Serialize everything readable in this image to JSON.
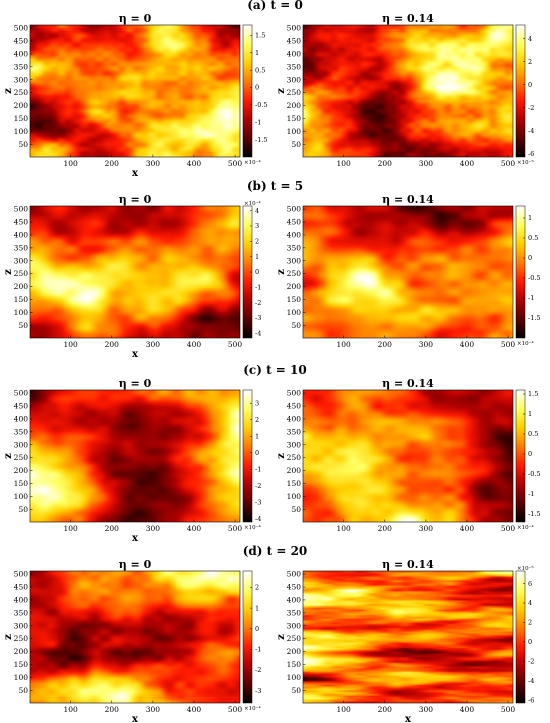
{
  "chart_data": [
    {
      "section_label": "(a) t = 0",
      "panels": [
        {
          "title": "η = 0",
          "type": "heatmap",
          "xlabel": "x",
          "ylabel": "z",
          "xlim": [
            1,
            512
          ],
          "ylim": [
            1,
            512
          ],
          "xticks": [
            "100",
            "200",
            "300",
            "400",
            "500"
          ],
          "yticks": [
            "50",
            "100",
            "150",
            "200",
            "250",
            "300",
            "350",
            "400",
            "450",
            "500"
          ],
          "colorbar": {
            "range": [
              -2,
              1.8
            ],
            "ticks": [
              "1.5",
              "1",
              "0.5",
              "0",
              "-0.5",
              "-1",
              "-1.5"
            ],
            "exponent": "×10⁻⁴"
          },
          "seed": 11,
          "scale": 1.0
        },
        {
          "title": "η = 0.14",
          "type": "heatmap",
          "xlabel": "",
          "ylabel": "z",
          "xlim": [
            1,
            512
          ],
          "ylim": [
            1,
            512
          ],
          "xticks": [
            "100",
            "200",
            "300",
            "400",
            "500"
          ],
          "yticks": [
            "50",
            "100",
            "150",
            "200",
            "250",
            "300",
            "350",
            "400",
            "450",
            "500"
          ],
          "colorbar": {
            "range": [
              -6.3,
              5.2
            ],
            "ticks": [
              "4",
              "2",
              "0",
              "-2",
              "-4",
              "-6"
            ],
            "exponent": "×10⁻⁵"
          },
          "seed": 23,
          "scale": 1.0
        }
      ]
    },
    {
      "section_label": "(b) t = 5",
      "panels": [
        {
          "title": "η = 0",
          "type": "heatmap",
          "xlabel": "x",
          "ylabel": "z",
          "xlim": [
            1,
            512
          ],
          "ylim": [
            1,
            512
          ],
          "xticks": [
            "100",
            "200",
            "300",
            "400",
            "500"
          ],
          "yticks": [
            "50",
            "100",
            "150",
            "200",
            "250",
            "300",
            "350",
            "400",
            "450",
            "500"
          ],
          "colorbar": {
            "range": [
              -4.3,
              4.3
            ],
            "ticks": [
              "4",
              "3",
              "2",
              "1",
              "0",
              "-1",
              "-2",
              "-3",
              "-4"
            ],
            "exponent": "×10⁻⁴"
          },
          "seed": 37,
          "scale": 1.8
        },
        {
          "title": "η = 0.14",
          "type": "heatmap",
          "xlabel": "",
          "ylabel": "z",
          "xlim": [
            1,
            512
          ],
          "ylim": [
            1,
            512
          ],
          "xticks": [
            "100",
            "200",
            "300",
            "400",
            "500"
          ],
          "yticks": [
            "50",
            "100",
            "150",
            "200",
            "250",
            "300",
            "350",
            "400",
            "450",
            "500"
          ],
          "colorbar": {
            "range": [
              -2.0,
              1.3
            ],
            "ticks": [
              "1",
              "0.5",
              "0",
              "-0.5",
              "-1",
              "-1.5"
            ],
            "exponent": "×10⁻⁴"
          },
          "seed": 41,
          "scale": 1.8
        }
      ]
    },
    {
      "section_label": "(c) t = 10",
      "panels": [
        {
          "title": "η = 0",
          "type": "heatmap",
          "xlabel": "x",
          "ylabel": "z",
          "xlim": [
            1,
            512
          ],
          "ylim": [
            1,
            512
          ],
          "xticks": [
            "100",
            "200",
            "300",
            "400",
            "500"
          ],
          "yticks": [
            "50",
            "100",
            "150",
            "200",
            "250",
            "300",
            "350",
            "400",
            "450",
            "500"
          ],
          "colorbar": {
            "range": [
              -4.2,
              3.8
            ],
            "ticks": [
              "3",
              "2",
              "1",
              "0",
              "-1",
              "-2",
              "-3",
              "-4"
            ],
            "exponent": "×10⁻⁴"
          },
          "seed": 53,
          "scale": 1.6
        },
        {
          "title": "η = 0.14",
          "type": "heatmap",
          "xlabel": "",
          "ylabel": "z",
          "xlim": [
            1,
            512
          ],
          "ylim": [
            1,
            512
          ],
          "xticks": [
            "100",
            "200",
            "300",
            "400",
            "500"
          ],
          "yticks": [
            "50",
            "100",
            "150",
            "200",
            "250",
            "300",
            "350",
            "400",
            "450",
            "500"
          ],
          "colorbar": {
            "range": [
              -1.7,
              1.6
            ],
            "ticks": [
              "1.5",
              "1",
              "0.5",
              "0",
              "-0.5",
              "-1",
              "-1.5"
            ],
            "exponent": "×10⁻⁴"
          },
          "seed": 67,
          "scale": 1.6
        }
      ]
    },
    {
      "section_label": "(d) t = 20",
      "panels": [
        {
          "title": "η = 0",
          "type": "heatmap",
          "xlabel": "x",
          "ylabel": "z",
          "xlim": [
            1,
            512
          ],
          "ylim": [
            1,
            512
          ],
          "xticks": [
            "100",
            "200",
            "300",
            "400",
            "500"
          ],
          "yticks": [
            "50",
            "100",
            "150",
            "200",
            "250",
            "300",
            "350",
            "400",
            "450",
            "500"
          ],
          "colorbar": {
            "range": [
              -3.6,
              2.8
            ],
            "ticks": [
              "2",
              "1",
              "0",
              "-1",
              "-2",
              "-3"
            ],
            "exponent": "×10⁻⁴"
          },
          "seed": 79,
          "scale": 1.4
        },
        {
          "title": "η = 0.14",
          "type": "heatmap",
          "xlabel": "x",
          "ylabel": "z",
          "xlim": [
            1,
            512
          ],
          "ylim": [
            1,
            512
          ],
          "xticks": [
            "100",
            "200",
            "300",
            "400",
            "500"
          ],
          "yticks": [
            "50",
            "100",
            "150",
            "200",
            "250",
            "300",
            "350",
            "400",
            "450",
            "500"
          ],
          "colorbar": {
            "range": [
              -6.3,
              7.3
            ],
            "ticks": [
              "6",
              "4",
              "2",
              "0",
              "-2",
              "-4",
              "-6"
            ],
            "exponent": "×10⁻⁵"
          },
          "seed": 97,
          "scale": 0.9,
          "stretch": 3.0
        }
      ]
    }
  ],
  "colormap": [
    "#000000",
    "#5a0000",
    "#b00000",
    "#ff1a00",
    "#ff7a00",
    "#ffd000",
    "#ffff60",
    "#ffffff"
  ]
}
